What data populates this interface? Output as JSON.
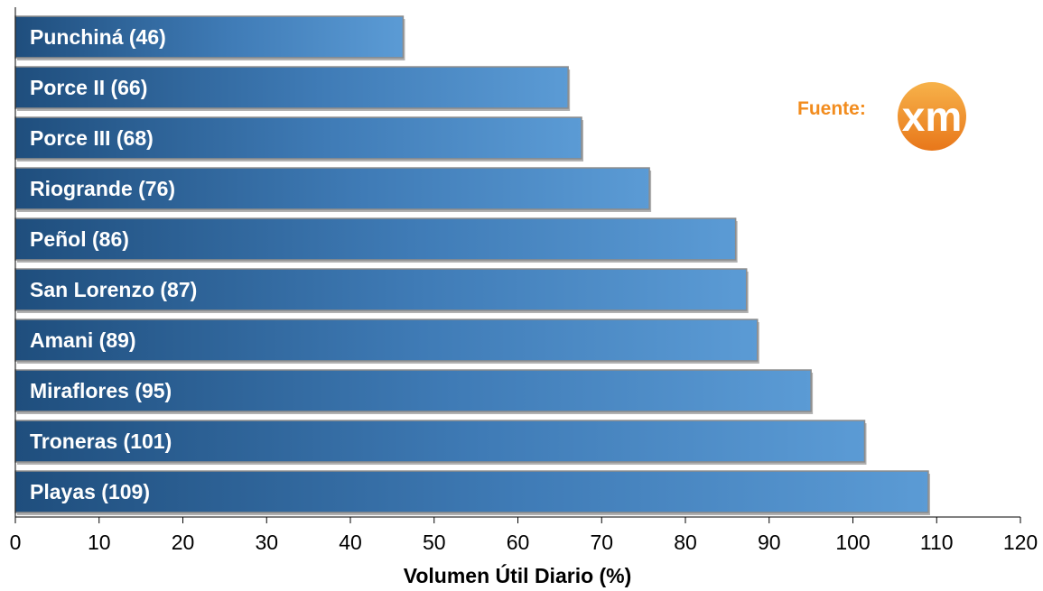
{
  "chart_data": {
    "type": "bar",
    "orientation": "horizontal",
    "categories": [
      "Punchiná (46)",
      "Porce II (66)",
      "Porce III (68)",
      "Riogrande (76)",
      "Peñol (86)",
      "San Lorenzo (87)",
      "Amani (89)",
      "Miraflores (95)",
      "Troneras (101)",
      "Playas (109)"
    ],
    "values": [
      46.3,
      66,
      67.6,
      75.7,
      86,
      87.3,
      88.6,
      95,
      101.4,
      109
    ],
    "xlabel": "Volumen Útil Diario (%)",
    "xlim": [
      0,
      120
    ],
    "xticks": [
      "0",
      "10",
      "20",
      "30",
      "40",
      "50",
      "60",
      "70",
      "80",
      "90",
      "100",
      "110",
      "120"
    ],
    "grid": false,
    "legend": "none",
    "bar_color_dark": "#1f4e7d",
    "bar_color_light": "#5b9bd5"
  },
  "source": {
    "label": "Fuente:",
    "logo_text": "xm",
    "logo_color": "#f28c1e"
  }
}
